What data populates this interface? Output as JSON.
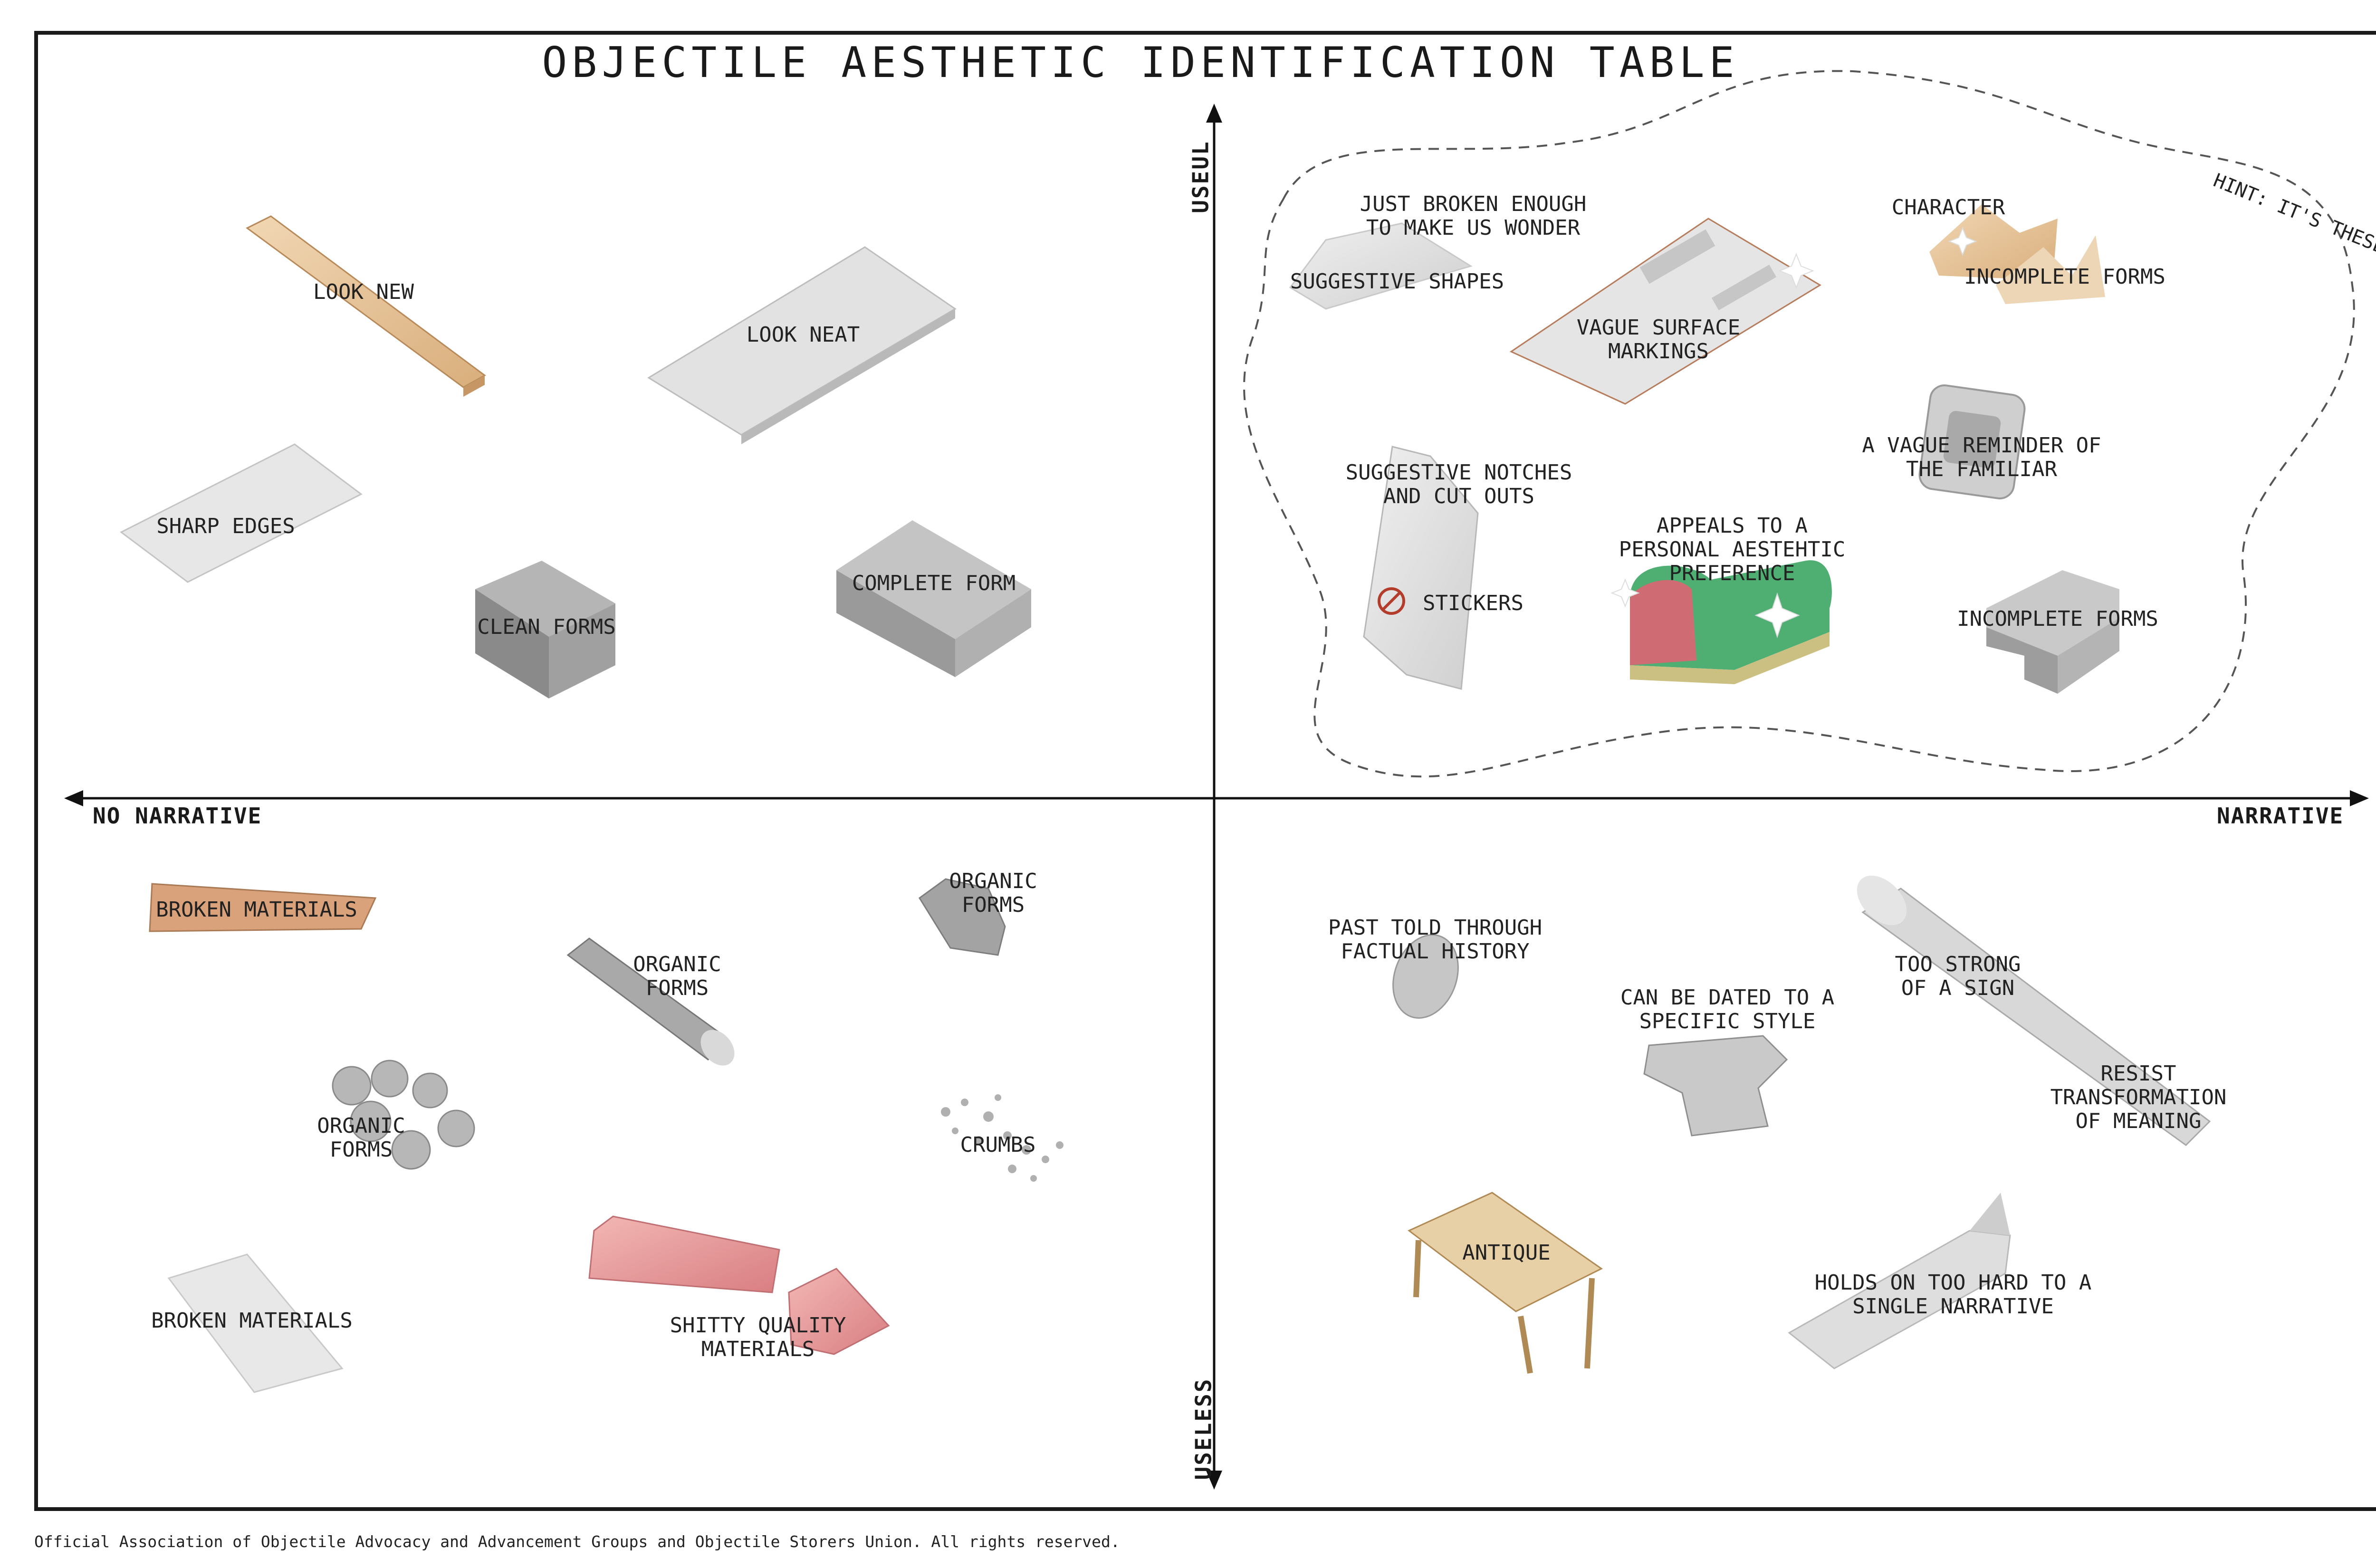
{
  "title": "OBJECTILE AESTHETIC IDENTIFICATION TABLE",
  "axes": {
    "top": "USEUL",
    "bottom": "USELESS",
    "left": "NO NARRATIVE",
    "right": "NARRATIVE"
  },
  "hint": "HINT: IT'S THESE ONES.",
  "quadrants": {
    "useful_no_narrative": [
      "LOOK NEW",
      "LOOK NEAT",
      "SHARP EDGES",
      "CLEAN FORMS",
      "COMPLETE FORM"
    ],
    "useful_narrative": [
      "JUST BROKEN ENOUGH\nTO MAKE US WONDER",
      "SUGGESTIVE SHAPES",
      "VAGUE SURFACE\nMARKINGS",
      "CHARACTER",
      "INCOMPLETE FORMS",
      "A VAGUE REMINDER OF\nTHE FAMILIAR",
      "SUGGESTIVE NOTCHES\nAND CUT OUTS",
      "STICKERS",
      "APPEALS TO A\nPERSONAL AESTEHTIC\nPREFERENCE",
      "INCOMPLETE FORMS"
    ],
    "useless_no_narrative": [
      "BROKEN MATERIALS",
      "ORGANIC\nFORMS",
      "ORGANIC\nFORMS",
      "ORGANIC\nFORMS",
      "CRUMBS",
      "BROKEN MATERIALS",
      "SHITTY QUALITY\nMATERIALS"
    ],
    "useless_narrative": [
      "PAST TOLD THROUGH\nFACTUAL HISTORY",
      "CAN BE DATED TO A\nSPECIFIC STYLE",
      "TOO STRONG\nOF A SIGN",
      "RESIST\nTRANSFORMATION\nOF MEANING",
      "ANTIQUE",
      "HOLDS ON TOO HARD TO A\nSINGLE NARRATIVE"
    ]
  },
  "footer": "Official Association of Objectile Advocacy and Advancement Groups and Objectile Storers Union. All rights reserved.",
  "colors": {
    "ink": "#1a1a1a",
    "wood": "#e4c49c",
    "concrete": "#9a9a9a",
    "marble_pink": "#e89a9a",
    "green": "#4fae72"
  }
}
